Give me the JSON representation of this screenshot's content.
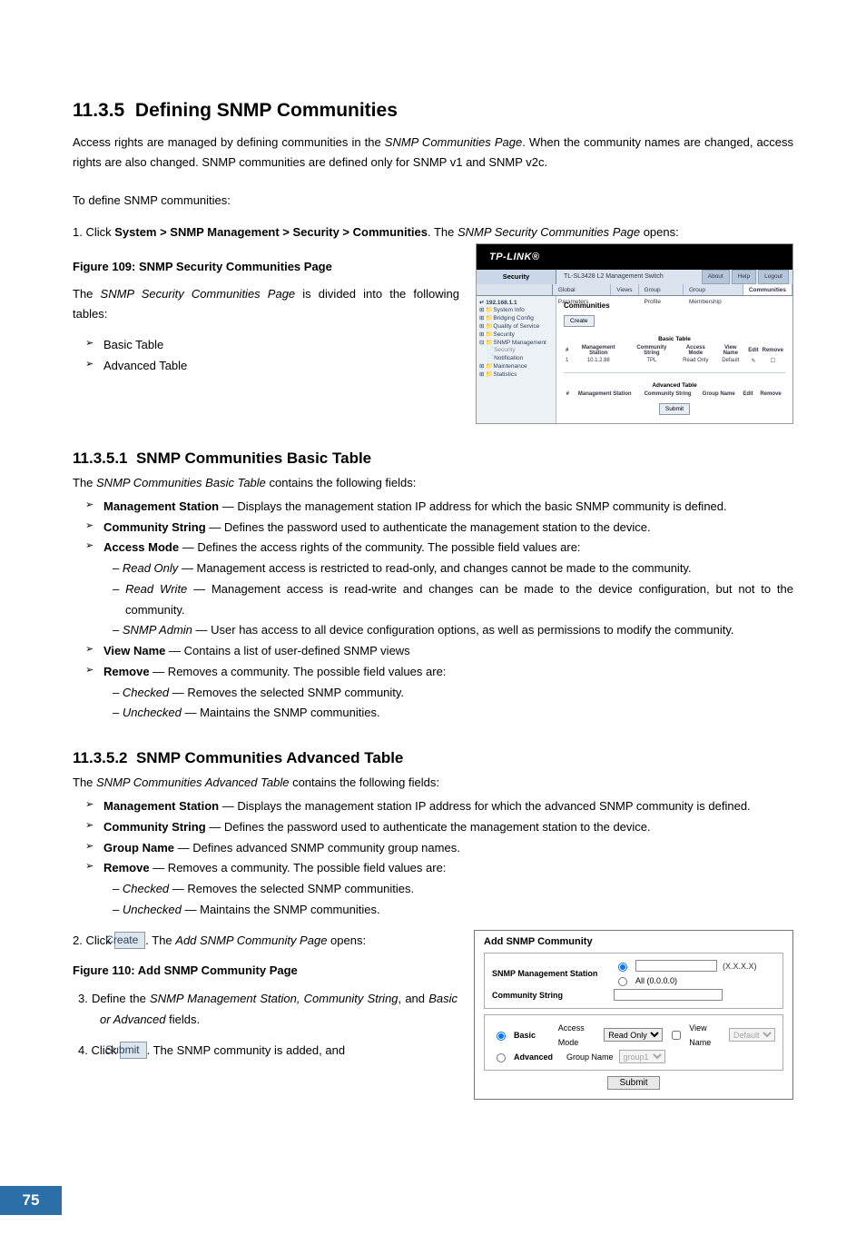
{
  "section": {
    "number": "11.3.5",
    "title": "Defining SNMP Communities",
    "intro_a": "Access rights are managed by defining communities in the ",
    "intro_page_name": "SNMP Communities Page",
    "intro_b": ". When the community names are changed, access rights are also changed. SNMP communities are defined only for SNMP v1 and SNMP v2c.",
    "lead2": "To define SNMP communities:",
    "step1_prefix": "1.   Click ",
    "step1_path": "System > SNMP Management > Security > Communities",
    "step1_mid": ". The ",
    "step1_pagename": "SNMP Security Communities Page",
    "step1_suffix": " opens:",
    "fig109": "Figure 109: SNMP Security Communities Page",
    "divided_a": "The ",
    "divided_name": "SNMP Security Communities Page",
    "divided_b": " is divided into the following tables:",
    "tables": [
      "Basic Table",
      "Advanced Table"
    ]
  },
  "sub1": {
    "number": "11.3.5.1",
    "title": "SNMP Communities Basic Table",
    "lead_a": "The ",
    "lead_name": "SNMP Communities Basic Table",
    "lead_b": " contains the following fields:",
    "fields": [
      {
        "name": "Management Station",
        "desc": " — Displays the management station IP address for which the basic SNMP community is defined."
      },
      {
        "name": "Community String",
        "desc": " — Defines the password used to authenticate the management station to the device."
      },
      {
        "name": "Access Mode",
        "desc": " — Defines the access rights of the community. The possible field values are:",
        "subs": [
          {
            "name": "Read Only",
            "desc": " — Management access is restricted to read-only, and changes cannot be made to the community."
          },
          {
            "name": "Read Write",
            "desc": " — Management access is read-write and changes can be made to the device configuration, but not to the community."
          },
          {
            "name": "SNMP Admin",
            "desc": " — User has access to all device configuration options, as well as permissions to modify the community."
          }
        ]
      },
      {
        "name": "View Name",
        "desc": " — Contains a list of user-defined SNMP views"
      },
      {
        "name": "Remove",
        "desc": " — Removes a community. The possible field values are:",
        "subs": [
          {
            "name": "Checked",
            "desc": " — Removes the selected SNMP community."
          },
          {
            "name": "Unchecked",
            "desc": " — Maintains the SNMP communities."
          }
        ]
      }
    ]
  },
  "sub2": {
    "number": "11.3.5.2",
    "title": "SNMP Communities Advanced Table",
    "lead_a": "The ",
    "lead_name": "SNMP Communities Advanced Table",
    "lead_b": " contains the following fields:",
    "fields": [
      {
        "name": "Management Station",
        "desc": " — Displays the management station IP address for which the advanced SNMP community is defined."
      },
      {
        "name": "Community String",
        "desc": " — Defines the password used to authenticate the management station to the device."
      },
      {
        "name": "Group Name",
        "desc": " — Defines advanced SNMP community group names."
      },
      {
        "name": "Remove",
        "desc": " — Removes a community. The possible field values are:",
        "subs": [
          {
            "name": "Checked",
            "desc": " — Removes the selected SNMP communities."
          },
          {
            "name": "Unchecked",
            "desc": " — Maintains the SNMP communities."
          }
        ]
      }
    ],
    "step2_prefix": "2.   Click ",
    "step2_btn": "Create",
    "step2_mid": ". The ",
    "step2_pagename": "Add SNMP Community Page",
    "step2_suffix": " opens:",
    "fig110": "Figure 110: Add SNMP Community Page",
    "step3_prefix": "3.   Define the ",
    "step3_fields": "SNMP Management Station, Community String",
    "step3_mid": ", and ",
    "step3_fields2": "Basic or Advanced",
    "step3_suffix": " fields.",
    "step4_prefix": "4.   Click ",
    "step4_btn": "Submit",
    "step4_suffix": ". The SNMP community is added, and"
  },
  "shot1": {
    "brand": "TP-LINK®",
    "sidebar_title": "Security",
    "device": "TL-SL3428 L2 Management Switch",
    "links": [
      "About",
      "Help",
      "Logout"
    ],
    "tabs": [
      "Global Parameters",
      "Views",
      "Group Profile",
      "Group Membership",
      "Communities"
    ],
    "active_tab": 4,
    "tree": [
      "192.168.1.1",
      "System Info",
      "Bridging Config",
      "Quality of Service",
      "Security",
      "SNMP Management",
      "Security",
      "Notification",
      "Maintenance",
      "Statistics"
    ],
    "main_title": "Communities",
    "create_btn": "Create",
    "basic_title": "Basic Table",
    "basic_cols": [
      "#",
      "Management Station",
      "Community String",
      "Access Mode",
      "View Name",
      "Edit",
      "Remove"
    ],
    "basic_row": [
      "1",
      "10.1.2.88",
      "TPL",
      "Read Only",
      "Default",
      "✎",
      "☐"
    ],
    "adv_title": "Advanced Table",
    "adv_cols": [
      "#",
      "Management Station",
      "Community String",
      "Group Name",
      "Edit",
      "Remove"
    ],
    "submit": "Submit"
  },
  "shot2": {
    "title": "Add SNMP Community",
    "mgmt_label": "SNMP Management Station",
    "mask": "(X.X.X.X)",
    "all_option": "All (0.0.0.0)",
    "comm_label": "Community String",
    "basic": "Basic",
    "access_mode": "Access Mode",
    "access_value": "Read Only",
    "view_name": "View Name",
    "view_value": "Default",
    "advanced": "Advanced",
    "group_name": "Group Name",
    "group_value": "group1",
    "submit": "Submit"
  },
  "page_number": "75"
}
